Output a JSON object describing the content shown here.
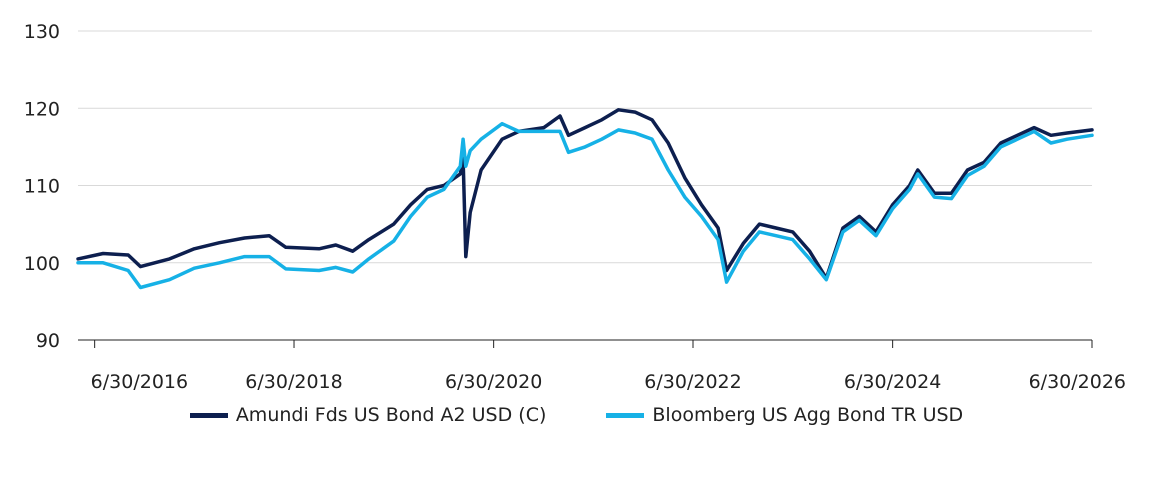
{
  "chart_data": {
    "type": "line",
    "title": "",
    "xlabel": "",
    "ylabel": "",
    "ylim": [
      90,
      130
    ],
    "yticks": [
      90,
      100,
      110,
      120,
      130
    ],
    "xlim": [
      "2016-04-30",
      "2026-06-30"
    ],
    "xticks": [
      "6/30/2016",
      "6/30/2018",
      "6/30/2020",
      "6/30/2022",
      "6/30/2024",
      "6/30/2026"
    ],
    "grid": "horizontal",
    "legend_position": "bottom",
    "series": [
      {
        "name": "Amundi Fds US Bond A2 USD (C)",
        "color": "#0d1f4f",
        "points": [
          [
            "2016-04-30",
            100.5
          ],
          [
            "2016-07-31",
            101.2
          ],
          [
            "2016-10-31",
            101.0
          ],
          [
            "2016-12-15",
            99.5
          ],
          [
            "2017-03-31",
            100.5
          ],
          [
            "2017-06-30",
            101.8
          ],
          [
            "2017-09-30",
            102.6
          ],
          [
            "2017-12-31",
            103.2
          ],
          [
            "2018-03-31",
            103.5
          ],
          [
            "2018-05-31",
            102.0
          ],
          [
            "2018-09-30",
            101.8
          ],
          [
            "2018-11-30",
            102.3
          ],
          [
            "2019-01-31",
            101.5
          ],
          [
            "2019-03-31",
            103.0
          ],
          [
            "2019-06-30",
            105.0
          ],
          [
            "2019-08-31",
            107.5
          ],
          [
            "2019-10-31",
            109.5
          ],
          [
            "2019-12-31",
            110.0
          ],
          [
            "2020-02-29",
            111.5
          ],
          [
            "2020-03-10",
            113.5
          ],
          [
            "2020-03-20",
            100.8
          ],
          [
            "2020-04-05",
            106.5
          ],
          [
            "2020-05-15",
            112.0
          ],
          [
            "2020-07-31",
            116.0
          ],
          [
            "2020-09-30",
            117.0
          ],
          [
            "2020-12-31",
            117.5
          ],
          [
            "2021-02-28",
            119.0
          ],
          [
            "2021-03-31",
            116.5
          ],
          [
            "2021-05-31",
            117.5
          ],
          [
            "2021-07-31",
            118.5
          ],
          [
            "2021-09-30",
            119.8
          ],
          [
            "2021-11-30",
            119.5
          ],
          [
            "2022-01-31",
            118.5
          ],
          [
            "2022-03-31",
            115.5
          ],
          [
            "2022-05-31",
            111.0
          ],
          [
            "2022-07-31",
            107.5
          ],
          [
            "2022-09-30",
            104.5
          ],
          [
            "2022-10-31",
            99.0
          ],
          [
            "2022-12-31",
            102.5
          ],
          [
            "2023-02-28",
            105.0
          ],
          [
            "2023-04-30",
            104.5
          ],
          [
            "2023-06-30",
            104.0
          ],
          [
            "2023-08-31",
            101.5
          ],
          [
            "2023-10-31",
            98.0
          ],
          [
            "2023-12-31",
            104.5
          ],
          [
            "2024-02-29",
            106.0
          ],
          [
            "2024-04-30",
            104.0
          ],
          [
            "2024-06-30",
            107.5
          ],
          [
            "2024-08-31",
            110.0
          ],
          [
            "2024-09-30",
            112.0
          ],
          [
            "2024-11-30",
            109.0
          ],
          [
            "2025-01-31",
            109.0
          ],
          [
            "2025-03-31",
            112.0
          ],
          [
            "2025-05-31",
            113.0
          ],
          [
            "2025-07-31",
            115.5
          ],
          [
            "2025-09-30",
            116.5
          ],
          [
            "2025-11-30",
            117.5
          ],
          [
            "2026-01-31",
            116.5
          ],
          [
            "2026-03-31",
            116.8
          ],
          [
            "2026-06-30",
            117.2
          ]
        ]
      },
      {
        "name": "Bloomberg US Agg Bond TR USD",
        "color": "#16b1e6",
        "points": [
          [
            "2016-04-30",
            100.0
          ],
          [
            "2016-07-31",
            100.0
          ],
          [
            "2016-10-31",
            99.0
          ],
          [
            "2016-12-15",
            96.8
          ],
          [
            "2017-03-31",
            97.8
          ],
          [
            "2017-06-30",
            99.3
          ],
          [
            "2017-09-30",
            100.0
          ],
          [
            "2017-12-31",
            100.8
          ],
          [
            "2018-03-31",
            100.8
          ],
          [
            "2018-05-31",
            99.2
          ],
          [
            "2018-09-30",
            99.0
          ],
          [
            "2018-11-30",
            99.4
          ],
          [
            "2019-01-31",
            98.8
          ],
          [
            "2019-03-31",
            100.5
          ],
          [
            "2019-06-30",
            102.8
          ],
          [
            "2019-08-31",
            106.0
          ],
          [
            "2019-10-31",
            108.5
          ],
          [
            "2019-12-31",
            109.5
          ],
          [
            "2020-02-29",
            112.5
          ],
          [
            "2020-03-10",
            116.0
          ],
          [
            "2020-03-20",
            112.5
          ],
          [
            "2020-04-05",
            114.5
          ],
          [
            "2020-05-15",
            116.0
          ],
          [
            "2020-07-31",
            118.0
          ],
          [
            "2020-09-30",
            117.0
          ],
          [
            "2020-12-31",
            117.0
          ],
          [
            "2021-02-28",
            117.0
          ],
          [
            "2021-03-31",
            114.3
          ],
          [
            "2021-05-31",
            115.0
          ],
          [
            "2021-07-31",
            116.0
          ],
          [
            "2021-09-30",
            117.2
          ],
          [
            "2021-11-30",
            116.8
          ],
          [
            "2022-01-31",
            116.0
          ],
          [
            "2022-03-31",
            112.0
          ],
          [
            "2022-05-31",
            108.5
          ],
          [
            "2022-07-31",
            106.0
          ],
          [
            "2022-09-30",
            103.0
          ],
          [
            "2022-10-31",
            97.5
          ],
          [
            "2022-12-31",
            101.5
          ],
          [
            "2023-02-28",
            104.0
          ],
          [
            "2023-04-30",
            103.5
          ],
          [
            "2023-06-30",
            103.0
          ],
          [
            "2023-08-31",
            100.5
          ],
          [
            "2023-10-31",
            97.8
          ],
          [
            "2023-12-31",
            104.0
          ],
          [
            "2024-02-29",
            105.5
          ],
          [
            "2024-04-30",
            103.5
          ],
          [
            "2024-06-30",
            107.0
          ],
          [
            "2024-08-31",
            109.5
          ],
          [
            "2024-09-30",
            111.5
          ],
          [
            "2024-11-30",
            108.5
          ],
          [
            "2025-01-31",
            108.3
          ],
          [
            "2025-03-31",
            111.3
          ],
          [
            "2025-05-31",
            112.5
          ],
          [
            "2025-07-31",
            115.0
          ],
          [
            "2025-09-30",
            116.0
          ],
          [
            "2025-11-30",
            117.0
          ],
          [
            "2026-01-31",
            115.5
          ],
          [
            "2026-03-31",
            116.0
          ],
          [
            "2026-06-30",
            116.5
          ]
        ]
      }
    ]
  }
}
